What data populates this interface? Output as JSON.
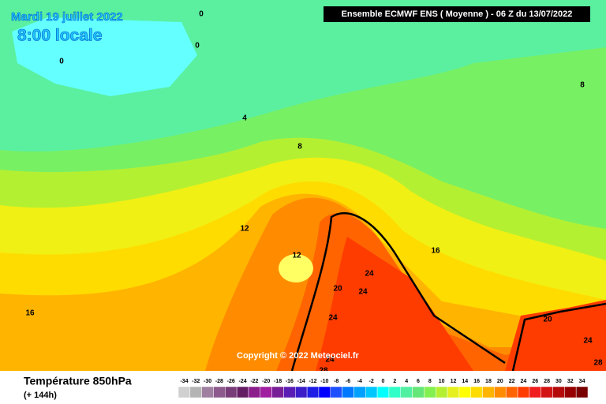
{
  "header": {
    "date": "Mardi 19 juillet 2022",
    "time": "8:00 locale",
    "run": "Ensemble ECMWF ENS  ( Moyenne )  -  06 Z du 13/07/2022"
  },
  "footer": {
    "title": "Température 850hPa",
    "subtitle": "(+ 144h)",
    "copyright": "Copyright © 2022 Meteociel.fr"
  },
  "legend": {
    "levels": [
      -34,
      -32,
      -30,
      -28,
      -26,
      -24,
      -22,
      -20,
      -18,
      -16,
      -14,
      -12,
      -10,
      -8,
      -6,
      -4,
      -2,
      0,
      2,
      4,
      6,
      8,
      10,
      12,
      14,
      16,
      18,
      20,
      22,
      24,
      26,
      28,
      30,
      32,
      34
    ],
    "colors": [
      "#d0d0d0",
      "#b4b4b4",
      "#a080a0",
      "#8c5a8c",
      "#783c78",
      "#641e64",
      "#8c1e8c",
      "#a01ea0",
      "#781e96",
      "#5a1eb4",
      "#3c1ec8",
      "#1e1ee6",
      "#0000ff",
      "#1e50ff",
      "#0078ff",
      "#00a0ff",
      "#00c8ff",
      "#00ffff",
      "#32ffc8",
      "#50f0a0",
      "#64e678",
      "#82f050",
      "#b4f032",
      "#e6f01e",
      "#ffff00",
      "#ffdc00",
      "#ffb400",
      "#ff8c00",
      "#ff6400",
      "#ff3c00",
      "#f01e1e",
      "#d21414",
      "#b40a0a",
      "#960000",
      "#780000"
    ]
  },
  "map_labels": [
    0,
    0,
    0,
    4,
    8,
    8,
    12,
    12,
    16,
    16,
    20,
    20,
    24,
    24,
    24,
    24,
    24,
    28,
    28
  ]
}
